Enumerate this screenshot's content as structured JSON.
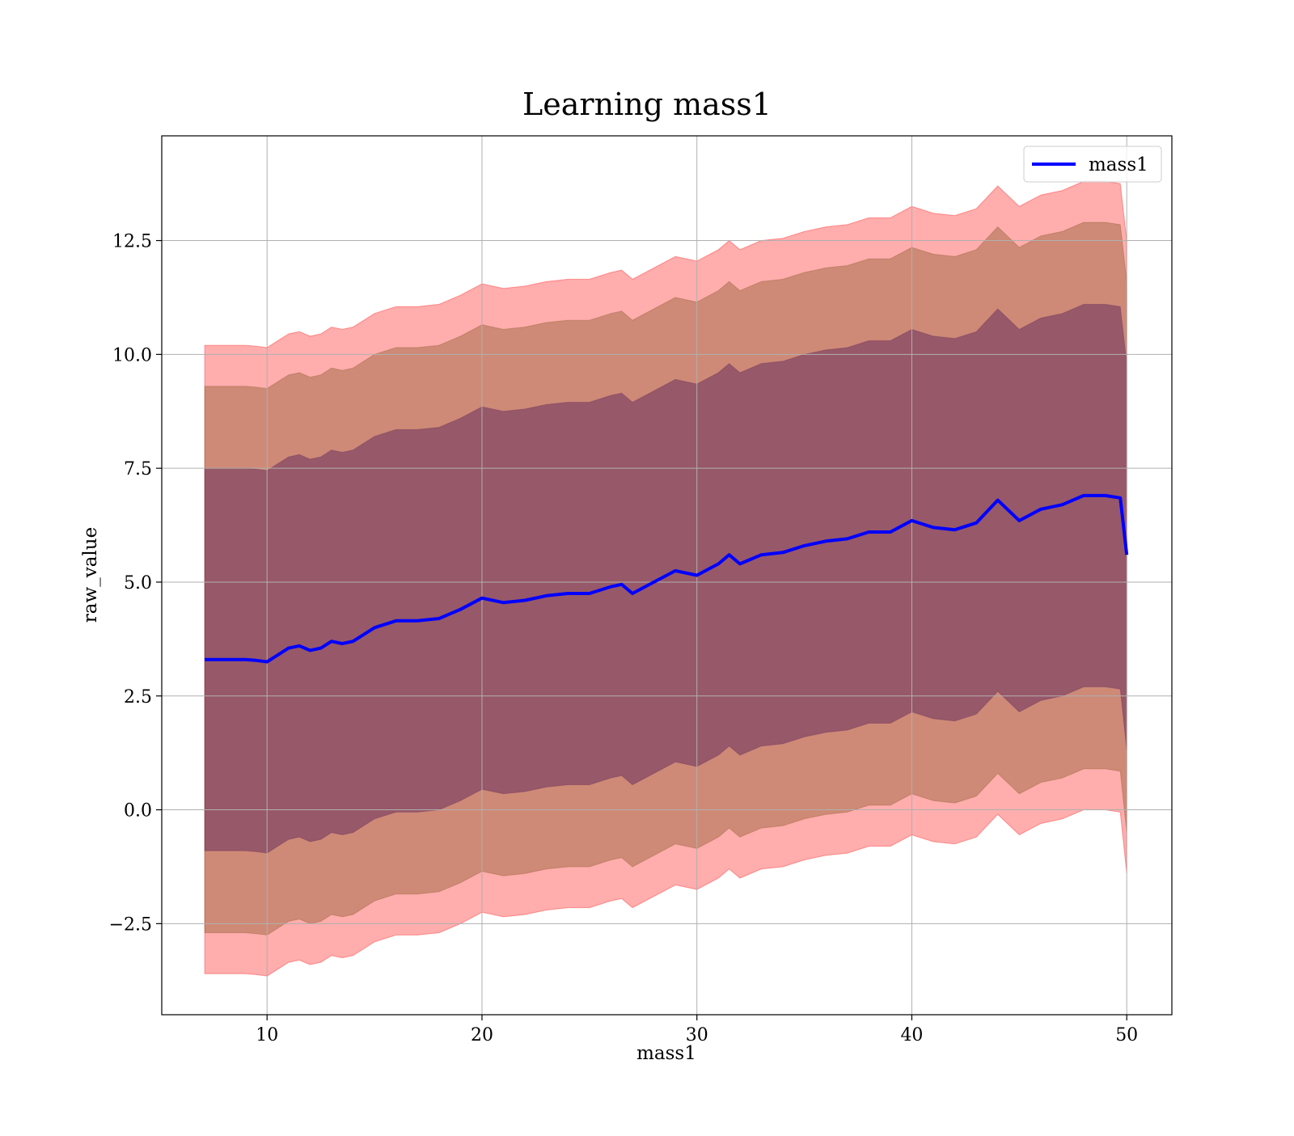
{
  "chart_data": {
    "type": "area",
    "title": "Learning mass1",
    "xlabel": "mass1",
    "ylabel": "raw_value",
    "xlim": [
      5.1,
      52.1
    ],
    "ylim": [
      -4.5,
      14.8
    ],
    "x_ticks": [
      {
        "value": 10,
        "label": "10"
      },
      {
        "value": 20,
        "label": "20"
      },
      {
        "value": 30,
        "label": "30"
      },
      {
        "value": 40,
        "label": "40"
      },
      {
        "value": 50,
        "label": "50"
      }
    ],
    "y_ticks": [
      {
        "value": -2.5,
        "label": "−2.5"
      },
      {
        "value": 0.0,
        "label": "0.0"
      },
      {
        "value": 2.5,
        "label": "2.5"
      },
      {
        "value": 5.0,
        "label": "5.0"
      },
      {
        "value": 7.5,
        "label": "7.5"
      },
      {
        "value": 10.0,
        "label": "10.0"
      },
      {
        "value": 12.5,
        "label": "12.5"
      }
    ],
    "grid": true,
    "legend": {
      "position": "top-right",
      "entries": [
        "mass1"
      ]
    },
    "series": [
      {
        "name": "mass1",
        "color": "#0000ff",
        "x": [
          7.1,
          8,
          9,
          9.5,
          10,
          10.5,
          11,
          11.5,
          12,
          12.5,
          13,
          13.5,
          14,
          15,
          16,
          17,
          18,
          19,
          20,
          21,
          22,
          23,
          24,
          25,
          26,
          26.5,
          27,
          28,
          29,
          30,
          31,
          31.5,
          32,
          33,
          34,
          35,
          36,
          37,
          38,
          39,
          40,
          41,
          42,
          43,
          44,
          45,
          46,
          47,
          48,
          49,
          49.7,
          50
        ],
        "y": [
          3.3,
          3.3,
          3.3,
          3.28,
          3.25,
          3.4,
          3.55,
          3.6,
          3.5,
          3.55,
          3.7,
          3.65,
          3.7,
          4.0,
          4.15,
          4.15,
          4.2,
          4.4,
          4.65,
          4.55,
          4.6,
          4.7,
          4.75,
          4.75,
          4.9,
          4.95,
          4.75,
          5.0,
          5.25,
          5.15,
          5.4,
          5.6,
          5.4,
          5.6,
          5.65,
          5.8,
          5.9,
          5.95,
          6.1,
          6.1,
          6.35,
          6.2,
          6.15,
          6.3,
          6.8,
          6.35,
          6.6,
          6.7,
          6.9,
          6.9,
          6.85,
          5.6
        ]
      }
    ],
    "bands": [
      {
        "color": "#ff0000",
        "opacity": 0.32,
        "x": [
          7.1,
          8,
          9,
          9.5,
          10,
          10.5,
          11,
          11.5,
          12,
          12.5,
          13,
          13.5,
          14,
          15,
          16,
          17,
          18,
          19,
          20,
          21,
          22,
          23,
          24,
          25,
          26,
          26.5,
          27,
          28,
          29,
          30,
          31,
          31.5,
          32,
          33,
          34,
          35,
          36,
          37,
          38,
          39,
          40,
          41,
          42,
          43,
          44,
          45,
          46,
          47,
          48,
          49,
          49.7,
          50
        ],
        "lower": [
          -3.6,
          -3.6,
          -3.6,
          -3.62,
          -3.65,
          -3.5,
          -3.35,
          -3.3,
          -3.4,
          -3.35,
          -3.2,
          -3.25,
          -3.2,
          -2.9,
          -2.75,
          -2.75,
          -2.7,
          -2.5,
          -2.25,
          -2.35,
          -2.3,
          -2.2,
          -2.15,
          -2.15,
          -2.0,
          -1.95,
          -2.15,
          -1.9,
          -1.65,
          -1.75,
          -1.5,
          -1.3,
          -1.5,
          -1.3,
          -1.25,
          -1.1,
          -1.0,
          -0.95,
          -0.8,
          -0.8,
          -0.55,
          -0.7,
          -0.75,
          -0.6,
          -0.1,
          -0.55,
          -0.3,
          -0.2,
          0.0,
          0.0,
          -0.05,
          -1.4
        ],
        "upper": [
          10.2,
          10.2,
          10.2,
          10.18,
          10.15,
          10.3,
          10.45,
          10.5,
          10.4,
          10.45,
          10.6,
          10.55,
          10.6,
          10.9,
          11.05,
          11.05,
          11.1,
          11.3,
          11.55,
          11.45,
          11.5,
          11.6,
          11.65,
          11.65,
          11.8,
          11.85,
          11.65,
          11.9,
          12.15,
          12.05,
          12.3,
          12.5,
          12.3,
          12.5,
          12.55,
          12.7,
          12.8,
          12.85,
          13.0,
          13.0,
          13.25,
          13.1,
          13.05,
          13.2,
          13.7,
          13.25,
          13.5,
          13.6,
          13.8,
          13.8,
          13.75,
          12.5
        ]
      },
      {
        "color": "#8b5a2b",
        "opacity": 0.42,
        "x": [
          7.1,
          8,
          9,
          9.5,
          10,
          10.5,
          11,
          11.5,
          12,
          12.5,
          13,
          13.5,
          14,
          15,
          16,
          17,
          18,
          19,
          20,
          21,
          22,
          23,
          24,
          25,
          26,
          26.5,
          27,
          28,
          29,
          30,
          31,
          31.5,
          32,
          33,
          34,
          35,
          36,
          37,
          38,
          39,
          40,
          41,
          42,
          43,
          44,
          45,
          46,
          47,
          48,
          49,
          49.7,
          50
        ],
        "lower": [
          -2.7,
          -2.7,
          -2.7,
          -2.72,
          -2.75,
          -2.6,
          -2.45,
          -2.4,
          -2.5,
          -2.45,
          -2.3,
          -2.35,
          -2.3,
          -2.0,
          -1.85,
          -1.85,
          -1.8,
          -1.6,
          -1.35,
          -1.45,
          -1.4,
          -1.3,
          -1.25,
          -1.25,
          -1.1,
          -1.05,
          -1.25,
          -1.0,
          -0.75,
          -0.85,
          -0.6,
          -0.4,
          -0.6,
          -0.4,
          -0.35,
          -0.2,
          -0.1,
          -0.05,
          0.1,
          0.1,
          0.35,
          0.2,
          0.15,
          0.3,
          0.8,
          0.35,
          0.6,
          0.7,
          0.9,
          0.9,
          0.85,
          -0.5
        ],
        "upper": [
          9.3,
          9.3,
          9.3,
          9.28,
          9.25,
          9.4,
          9.55,
          9.6,
          9.5,
          9.55,
          9.7,
          9.65,
          9.7,
          10.0,
          10.15,
          10.15,
          10.2,
          10.4,
          10.65,
          10.55,
          10.6,
          10.7,
          10.75,
          10.75,
          10.9,
          10.95,
          10.75,
          11.0,
          11.25,
          11.15,
          11.4,
          11.6,
          11.4,
          11.6,
          11.65,
          11.8,
          11.9,
          11.95,
          12.1,
          12.1,
          12.35,
          12.2,
          12.15,
          12.3,
          12.8,
          12.35,
          12.6,
          12.7,
          12.9,
          12.9,
          12.85,
          11.6
        ]
      },
      {
        "color": "#6a2f5f",
        "opacity": 0.55,
        "x": [
          7.1,
          8,
          9,
          9.5,
          10,
          10.5,
          11,
          11.5,
          12,
          12.5,
          13,
          13.5,
          14,
          15,
          16,
          17,
          18,
          19,
          20,
          21,
          22,
          23,
          24,
          25,
          26,
          26.5,
          27,
          28,
          29,
          30,
          31,
          31.5,
          32,
          33,
          34,
          35,
          36,
          37,
          38,
          39,
          40,
          41,
          42,
          43,
          44,
          45,
          46,
          47,
          48,
          49,
          49.7,
          50
        ],
        "lower": [
          -0.9,
          -0.9,
          -0.9,
          -0.92,
          -0.95,
          -0.8,
          -0.65,
          -0.6,
          -0.7,
          -0.65,
          -0.5,
          -0.55,
          -0.5,
          -0.2,
          -0.05,
          -0.05,
          0.0,
          0.2,
          0.45,
          0.35,
          0.4,
          0.5,
          0.55,
          0.55,
          0.7,
          0.75,
          0.55,
          0.8,
          1.05,
          0.95,
          1.2,
          1.4,
          1.2,
          1.4,
          1.45,
          1.6,
          1.7,
          1.75,
          1.9,
          1.9,
          2.15,
          2.0,
          1.95,
          2.1,
          2.6,
          2.15,
          2.4,
          2.5,
          2.7,
          2.7,
          2.65,
          1.3
        ],
        "upper": [
          7.5,
          7.5,
          7.5,
          7.48,
          7.45,
          7.6,
          7.75,
          7.8,
          7.7,
          7.75,
          7.9,
          7.85,
          7.9,
          8.2,
          8.35,
          8.35,
          8.4,
          8.6,
          8.85,
          8.75,
          8.8,
          8.9,
          8.95,
          8.95,
          9.1,
          9.15,
          8.95,
          9.2,
          9.45,
          9.35,
          9.6,
          9.8,
          9.6,
          9.8,
          9.85,
          10.0,
          10.1,
          10.15,
          10.3,
          10.3,
          10.55,
          10.4,
          10.35,
          10.5,
          11.0,
          10.55,
          10.8,
          10.9,
          11.1,
          11.1,
          11.05,
          9.8
        ]
      }
    ]
  }
}
